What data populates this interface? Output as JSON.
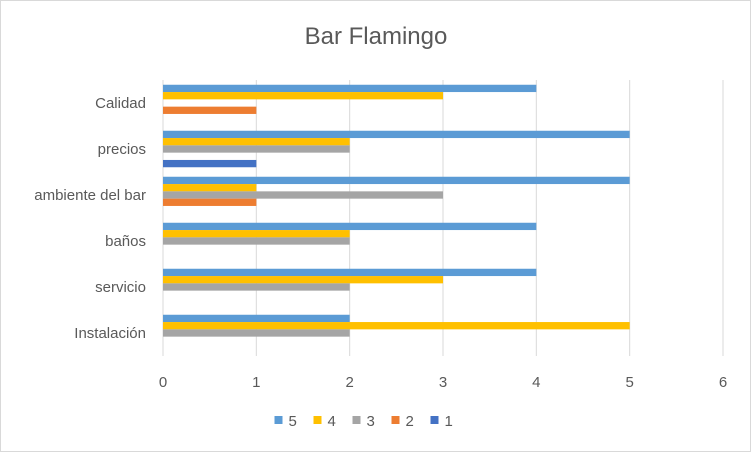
{
  "chart_data": {
    "type": "bar",
    "orientation": "horizontal",
    "title": "Bar Flamingo",
    "categories": [
      "Calidad",
      "precios",
      "ambiente del bar",
      "baños",
      "servicio",
      "Instalación"
    ],
    "series": [
      {
        "name": "5",
        "color": "#5b9bd5",
        "values": [
          4,
          5,
          5,
          4,
          4,
          2
        ]
      },
      {
        "name": "4",
        "color": "#ffc000",
        "values": [
          3,
          2,
          1,
          2,
          3,
          5
        ]
      },
      {
        "name": "3",
        "color": "#a5a5a5",
        "values": [
          0,
          2,
          3,
          2,
          2,
          2
        ]
      },
      {
        "name": "2",
        "color": "#ed7d31",
        "values": [
          1,
          0,
          1,
          0,
          0,
          0
        ]
      },
      {
        "name": "1",
        "color": "#4472c4",
        "values": [
          0,
          1,
          0,
          0,
          0,
          0
        ]
      }
    ],
    "xlim": [
      0,
      6
    ],
    "xticks": [
      "0",
      "1",
      "2",
      "3",
      "4",
      "5",
      "6"
    ],
    "grid": true,
    "legend_position": "bottom"
  }
}
